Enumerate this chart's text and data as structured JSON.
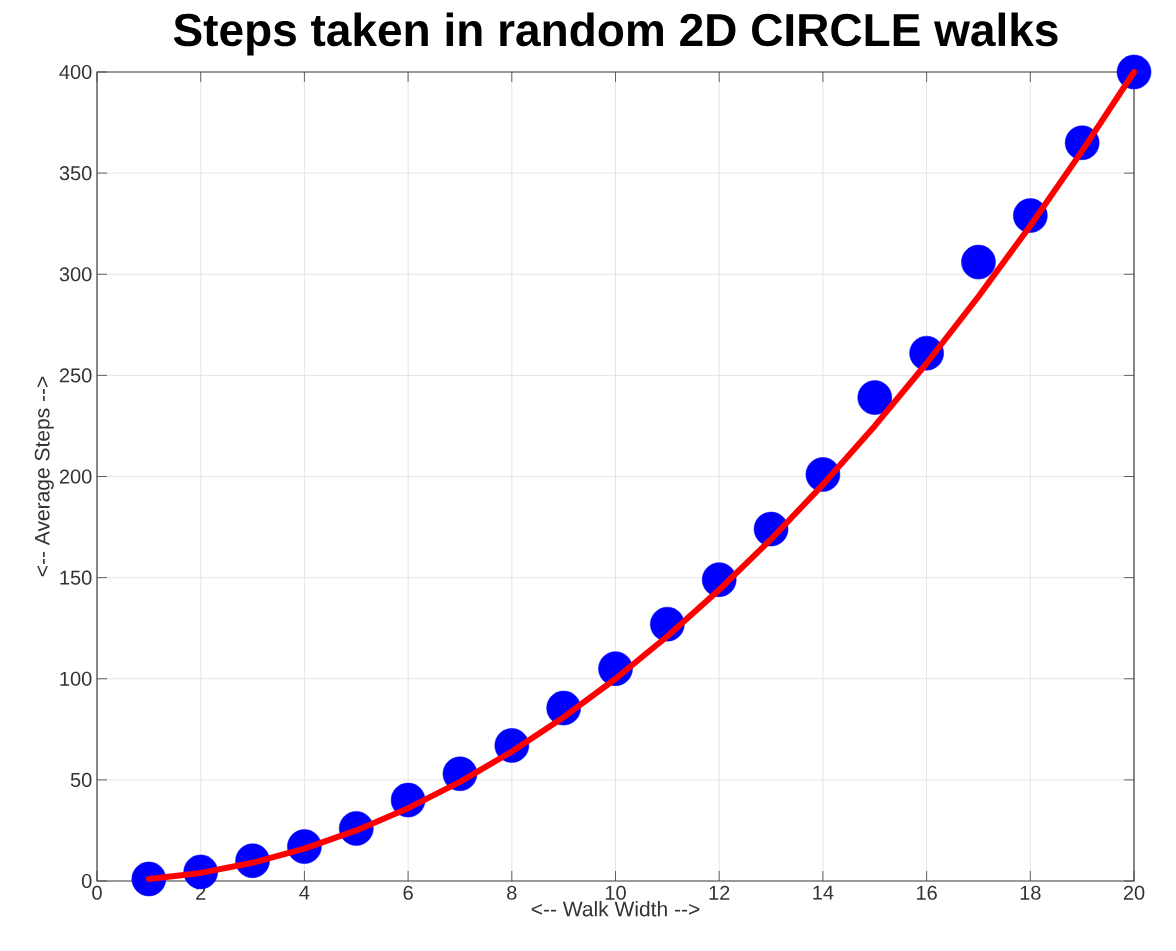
{
  "chart_data": {
    "type": "scatter",
    "title": "Steps taken in random 2D CIRCLE walks",
    "xlabel": "<-- Walk Width -->",
    "ylabel": "<-- Average Steps -->",
    "xlim": [
      0,
      20
    ],
    "ylim": [
      0,
      400
    ],
    "xticks": [
      0,
      2,
      4,
      6,
      8,
      10,
      12,
      14,
      16,
      18,
      20
    ],
    "yticks": [
      0,
      50,
      100,
      150,
      200,
      250,
      300,
      350,
      400
    ],
    "grid": true,
    "series": [
      {
        "color": "#0000ff",
        "marker": "circle",
        "x": [
          1,
          2,
          3,
          4,
          5,
          6,
          7,
          8,
          9,
          10,
          11,
          12,
          13,
          14,
          15,
          16,
          17,
          18,
          19,
          20
        ],
        "values": [
          1,
          4.5,
          10,
          17,
          26,
          40,
          53,
          67,
          85.5,
          105,
          127,
          149,
          174,
          201,
          239,
          261,
          306,
          329,
          365,
          400
        ]
      },
      {
        "type": "line",
        "color": "#ff0000",
        "marker": "none",
        "line_style": "solid",
        "x": [
          1,
          2,
          3,
          4,
          5,
          6,
          7,
          8,
          9,
          10,
          11,
          12,
          13,
          14,
          15,
          16,
          17,
          18,
          19,
          20
        ],
        "values": [
          1,
          4,
          9,
          16,
          25,
          36,
          49,
          64,
          81,
          100,
          121,
          144,
          169,
          196,
          225,
          256,
          289,
          324,
          361,
          400
        ]
      }
    ]
  }
}
